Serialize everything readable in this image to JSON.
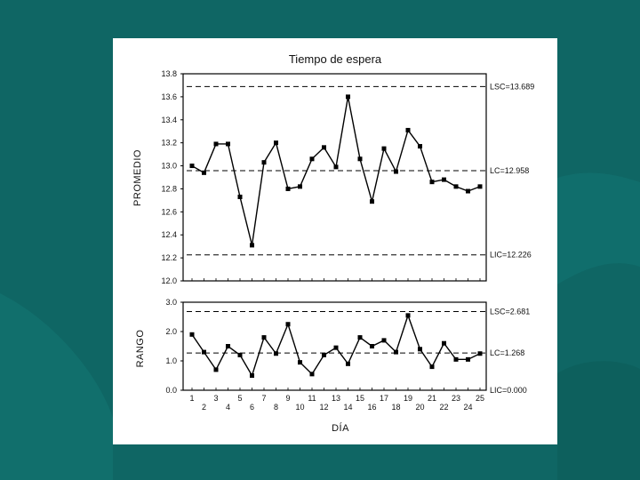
{
  "slide": {
    "background_color": "#0f6664",
    "panel_color": "#ffffff"
  },
  "chart_data": [
    {
      "type": "line",
      "title": "Tiempo de espera",
      "ylabel": "PROMEDIO",
      "xlabel": "",
      "ylim": [
        12.0,
        13.8
      ],
      "yticks": [
        12.0,
        12.2,
        12.4,
        12.6,
        12.8,
        13.0,
        13.2,
        13.4,
        13.6,
        13.8
      ],
      "ytick_labels": [
        "12.0",
        "12.2",
        "12.4",
        "12.6",
        "12.8",
        "13.0",
        "13.2",
        "13.4",
        "13.6",
        "13.8"
      ],
      "x": [
        1,
        2,
        3,
        4,
        5,
        6,
        7,
        8,
        9,
        10,
        11,
        12,
        13,
        14,
        15,
        16,
        17,
        18,
        19,
        20,
        21,
        22,
        23,
        24,
        25
      ],
      "values": [
        13.0,
        12.94,
        13.19,
        13.19,
        12.73,
        12.31,
        13.03,
        13.2,
        12.8,
        12.82,
        13.06,
        13.16,
        12.99,
        13.6,
        13.06,
        12.69,
        13.15,
        12.95,
        13.31,
        13.17,
        12.86,
        12.88,
        12.82,
        12.78,
        12.82
      ],
      "control_lines": [
        {
          "name": "LSC",
          "value": 13.689,
          "label": "LSC=13.689"
        },
        {
          "name": "LC",
          "value": 12.958,
          "label": "LC=12.958"
        },
        {
          "name": "LIC",
          "value": 12.226,
          "label": "LIC=12.226"
        }
      ]
    },
    {
      "type": "line",
      "title": "",
      "ylabel": "RANGO",
      "xlabel": "DÍA",
      "ylim": [
        0.0,
        3.0
      ],
      "yticks": [
        0.0,
        1.0,
        2.0,
        3.0
      ],
      "ytick_labels": [
        "0.0",
        "1.0",
        "2.0",
        "3.0"
      ],
      "x": [
        1,
        2,
        3,
        4,
        5,
        6,
        7,
        8,
        9,
        10,
        11,
        12,
        13,
        14,
        15,
        16,
        17,
        18,
        19,
        20,
        21,
        22,
        23,
        24,
        25
      ],
      "xtick_labels": [
        "1",
        "2",
        "3",
        "4",
        "5",
        "6",
        "7",
        "8",
        "9",
        "10",
        "11",
        "12",
        "13",
        "14",
        "15",
        "16",
        "17",
        "18",
        "19",
        "20",
        "21",
        "22",
        "23",
        "24",
        "25"
      ],
      "values": [
        1.9,
        1.3,
        0.7,
        1.5,
        1.2,
        0.5,
        1.8,
        1.25,
        2.25,
        0.95,
        0.55,
        1.2,
        1.45,
        0.9,
        1.8,
        1.5,
        1.7,
        1.3,
        2.55,
        1.4,
        0.8,
        1.6,
        1.05,
        1.05,
        1.25
      ],
      "control_lines": [
        {
          "name": "LSC",
          "value": 2.681,
          "label": "LSC=2.681"
        },
        {
          "name": "LC",
          "value": 1.268,
          "label": "LC=1.268"
        },
        {
          "name": "LIC",
          "value": 0.0,
          "label": "LIC=0.000"
        }
      ]
    }
  ]
}
